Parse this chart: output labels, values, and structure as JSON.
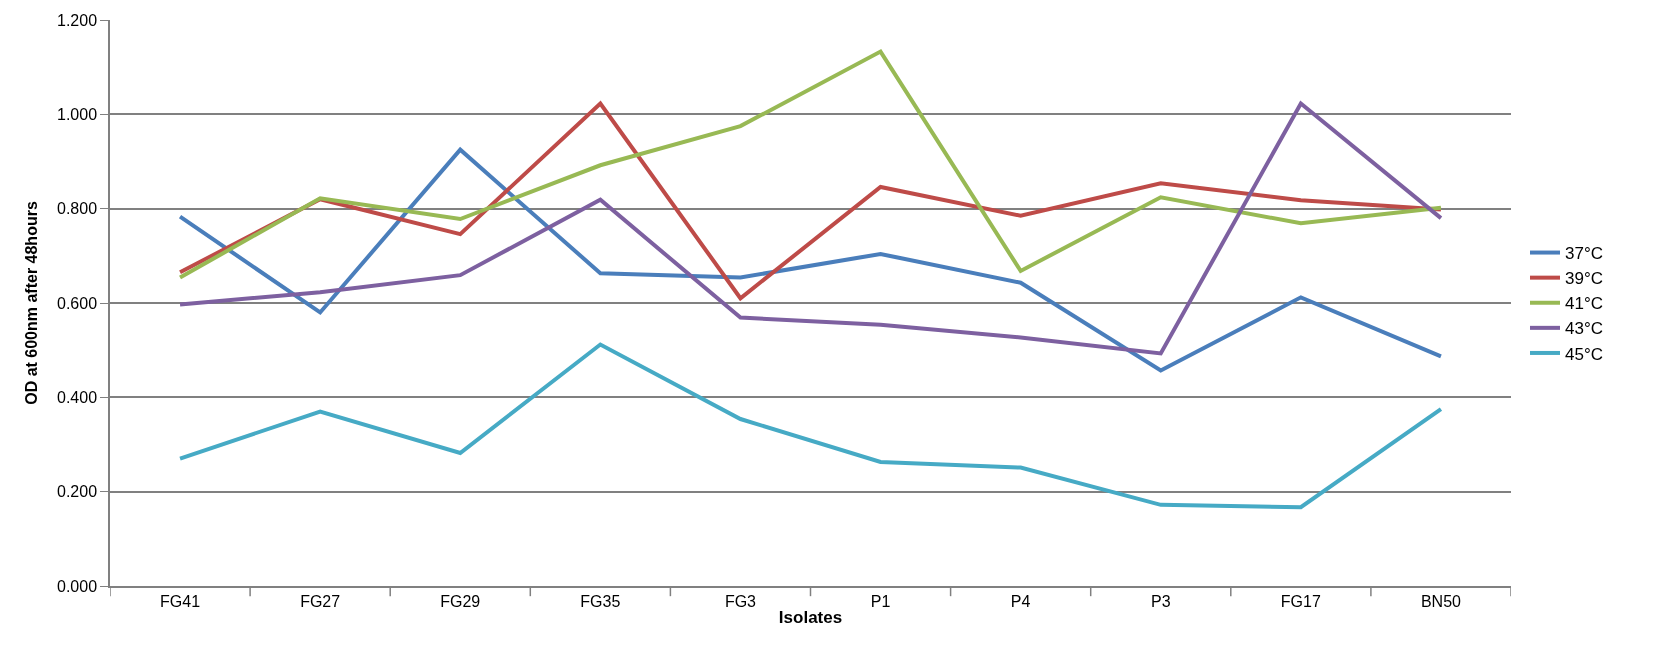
{
  "chart_data": {
    "type": "line",
    "xlabel": "Isolates",
    "ylabel": "OD at 600nm after 48hours",
    "categories": [
      "FG41",
      "FG27",
      "FG29",
      "FG35",
      "FG3",
      "P1",
      "P4",
      "P3",
      "FG17",
      "BN50"
    ],
    "series": [
      {
        "name": "37°C",
        "color": "#4a7ebb",
        "values": [
          0.783,
          0.58,
          0.925,
          0.663,
          0.654,
          0.704,
          0.643,
          0.457,
          0.612,
          0.487
        ]
      },
      {
        "name": "39°C",
        "color": "#be4b48",
        "values": [
          0.665,
          0.82,
          0.746,
          1.023,
          0.61,
          0.846,
          0.785,
          0.854,
          0.818,
          0.798
        ]
      },
      {
        "name": "41°C",
        "color": "#98b954",
        "values": [
          0.654,
          0.822,
          0.778,
          0.892,
          0.975,
          1.133,
          0.668,
          0.824,
          0.769,
          0.802
        ]
      },
      {
        "name": "43°C",
        "color": "#7d60a0",
        "values": [
          0.597,
          0.623,
          0.659,
          0.819,
          0.569,
          0.554,
          0.527,
          0.493,
          1.023,
          0.78
        ]
      },
      {
        "name": "45°C",
        "color": "#46aac5",
        "values": [
          0.27,
          0.37,
          0.282,
          0.512,
          0.354,
          0.263,
          0.251,
          0.172,
          0.167,
          0.375
        ]
      }
    ],
    "ylim": [
      0,
      1.2
    ],
    "yticks": [
      {
        "value": 0,
        "label": "0.000"
      },
      {
        "value": 0.2,
        "label": "0.200"
      },
      {
        "value": 0.4,
        "label": "0.400"
      },
      {
        "value": 0.6,
        "label": "0.600"
      },
      {
        "value": 0.8,
        "label": "0.800"
      },
      {
        "value": 1.0,
        "label": "1.000"
      },
      {
        "value": 1.2,
        "label": "1.200"
      }
    ],
    "grid": "y",
    "legend": "right",
    "marker": "none",
    "line_style": "solid"
  }
}
